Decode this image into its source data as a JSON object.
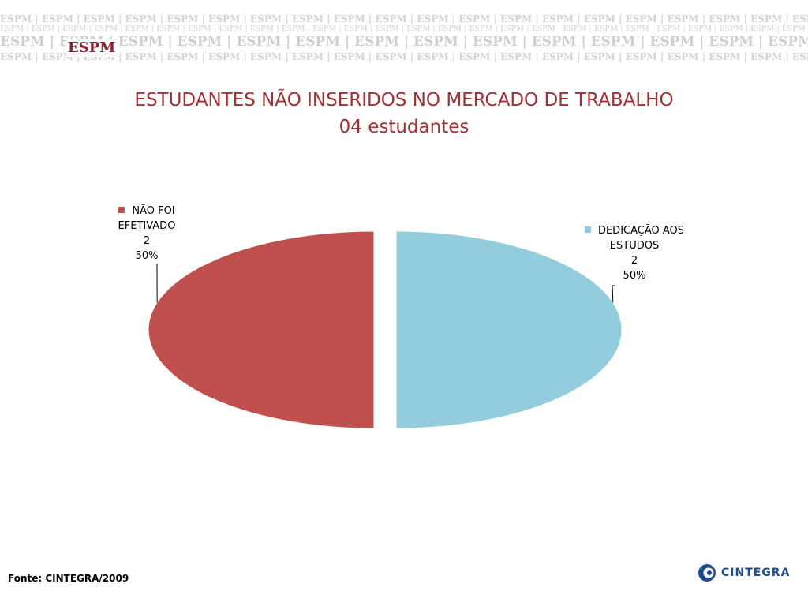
{
  "header": {
    "watermark": "ESPM",
    "brand": "ESPM"
  },
  "slide": {
    "title": "ESTUDANTES NÃO INSERIDOS NO MERCADO DE TRABALHO",
    "subtitle": "04 estudantes"
  },
  "colors": {
    "title": "#a33035",
    "slice_1": "#c0504d",
    "slice_2": "#93cddd",
    "brand": "#9b1c2c",
    "logo": "#1f4d8c"
  },
  "chart_data": {
    "type": "pie",
    "title": "ESTUDANTES NÃO INSERIDOS NO MERCADO DE TRABALHO",
    "subtitle": "04 estudantes",
    "style": "3d-exploded",
    "slices": [
      {
        "name": "NÃO FOI EFETIVADO",
        "value": 2,
        "percent": "50%",
        "color": "#c0504d"
      },
      {
        "name": "DEDICAÇÃO AOS ESTUDOS",
        "value": 2,
        "percent": "50%",
        "color": "#93cddd"
      }
    ],
    "labels": [
      {
        "lines": [
          "NÃO FOI",
          "EFETIVADO",
          "2",
          "50%"
        ]
      },
      {
        "lines": [
          "DEDICAÇÃO AOS",
          "ESTUDOS",
          "2",
          "50%"
        ]
      }
    ]
  },
  "footer": {
    "source": "Fonte: CINTEGRA/2009",
    "logo_text": "CINTEGRA",
    "logo_icon": "cintegra-c-icon"
  }
}
